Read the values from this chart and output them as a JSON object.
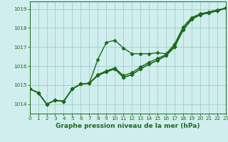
{
  "title": "Graphe pression niveau de la mer (hPa)",
  "bg_color": "#d0eeee",
  "grid_color": "#a0cccc",
  "line_color": "#1a6b1a",
  "x_min": 0,
  "x_max": 23,
  "y_min": 1013.5,
  "y_max": 1019.4,
  "y_ticks": [
    1014,
    1015,
    1016,
    1017,
    1018,
    1019
  ],
  "x_ticks": [
    0,
    1,
    2,
    3,
    4,
    5,
    6,
    7,
    8,
    9,
    10,
    11,
    12,
    13,
    14,
    15,
    16,
    17,
    18,
    19,
    20,
    21,
    22,
    23
  ],
  "series": [
    [
      1014.8,
      1014.6,
      1014.0,
      1014.2,
      1014.15,
      1014.8,
      1015.05,
      1015.1,
      1016.35,
      1017.25,
      1017.35,
      1016.95,
      1016.65,
      1016.65,
      1016.65,
      1016.7,
      1016.65,
      1017.15,
      1018.05,
      1018.55,
      1018.75,
      1018.85,
      1018.95,
      1019.05
    ],
    [
      1014.8,
      1014.6,
      1014.0,
      1014.2,
      1014.15,
      1014.8,
      1015.05,
      1015.1,
      1015.5,
      1015.7,
      1015.85,
      1015.4,
      1015.55,
      1015.85,
      1016.1,
      1016.3,
      1016.55,
      1017.0,
      1017.9,
      1018.45,
      1018.7,
      1018.8,
      1018.9,
      1019.05
    ],
    [
      1014.8,
      1014.6,
      1014.0,
      1014.2,
      1014.15,
      1014.8,
      1015.05,
      1015.1,
      1015.5,
      1015.7,
      1015.85,
      1015.4,
      1015.55,
      1015.85,
      1016.1,
      1016.3,
      1016.55,
      1017.0,
      1017.9,
      1018.45,
      1018.7,
      1018.8,
      1018.9,
      1019.05
    ],
    [
      1014.8,
      1014.6,
      1014.0,
      1014.2,
      1014.15,
      1014.8,
      1015.05,
      1015.1,
      1015.55,
      1015.75,
      1015.9,
      1015.5,
      1015.65,
      1015.95,
      1016.2,
      1016.4,
      1016.6,
      1017.05,
      1017.95,
      1018.5,
      1018.7,
      1018.8,
      1018.9,
      1019.05
    ]
  ],
  "marker": "D",
  "marker_size": 2.5,
  "linewidth": 1.0,
  "title_fontsize": 6.5,
  "tick_fontsize": 5.2
}
